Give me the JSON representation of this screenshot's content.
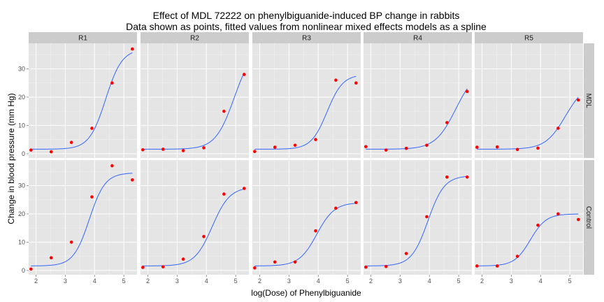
{
  "chart_data": {
    "type": "scatter",
    "title_lines": [
      "Effect of MDL 72222 on phenylbiguanide-induced BP change in rabbits",
      "Data shown as points, fitted values from nonlinear mixed effects models as a spline"
    ],
    "xlabel": "log(Dose) of Phenylbiguanide",
    "ylabel": "Change in blood pressure (mm Hg)",
    "xlim": [
      1.75,
      5.45
    ],
    "ylim": [
      -1.5,
      39
    ],
    "x_ticks": [
      2,
      3,
      4,
      5
    ],
    "x_tick_labels": [
      "2",
      "3",
      "4",
      "5"
    ],
    "y_ticks": [
      0,
      10,
      20,
      30
    ],
    "y_tick_labels": [
      "0",
      "10",
      "20",
      "30"
    ],
    "grid": true,
    "columns": [
      "R1",
      "R2",
      "R3",
      "R4",
      "R5"
    ],
    "rows": [
      "MDL",
      "Control"
    ],
    "point_color": "#FF0000",
    "line_color": "#3366FF",
    "panel_background": "#E5E5E5",
    "strip_background": "#CCCCCC",
    "x": [
      1.83,
      2.52,
      3.21,
      3.91,
      4.6,
      5.29
    ],
    "panels": [
      {
        "column": "R1",
        "row": "MDL",
        "values": [
          1.3,
          0.7,
          4,
          9,
          25,
          37
        ],
        "fit": {
          "base": 1.6,
          "top": 37,
          "mid": 4.38,
          "scale": 0.28
        }
      },
      {
        "column": "R2",
        "row": "MDL",
        "values": [
          1.4,
          1.6,
          1.1,
          2.1,
          15,
          28
        ],
        "fit": {
          "base": 1.6,
          "top": 38,
          "mid": 4.95,
          "scale": 0.32
        }
      },
      {
        "column": "R3",
        "row": "MDL",
        "values": [
          0.8,
          2.3,
          3,
          5,
          26,
          25
        ],
        "fit": {
          "base": 1.6,
          "top": 28,
          "mid": 4.3,
          "scale": 0.27
        }
      },
      {
        "column": "R4",
        "row": "MDL",
        "values": [
          2.5,
          1.3,
          1.9,
          3,
          11,
          22
        ],
        "fit": {
          "base": 1.6,
          "top": 30,
          "mid": 4.9,
          "scale": 0.35
        }
      },
      {
        "column": "R5",
        "row": "MDL",
        "values": [
          2.3,
          2.4,
          1.5,
          2,
          9,
          19
        ],
        "fit": {
          "base": 1.6,
          "top": 25,
          "mid": 4.85,
          "scale": 0.34
        }
      },
      {
        "column": "R1",
        "row": "Control",
        "values": [
          0.5,
          4.5,
          10,
          26,
          37,
          32
        ],
        "fit": {
          "base": 1.6,
          "top": 34.5,
          "mid": 3.82,
          "scale": 0.27
        }
      },
      {
        "column": "R2",
        "row": "Control",
        "values": [
          1.1,
          1.3,
          4,
          12,
          27,
          29
        ],
        "fit": {
          "base": 1.6,
          "top": 29.5,
          "mid": 4.2,
          "scale": 0.3
        }
      },
      {
        "column": "R3",
        "row": "Control",
        "values": [
          0.9,
          3,
          3,
          14,
          22,
          24
        ],
        "fit": {
          "base": 1.6,
          "top": 24,
          "mid": 3.95,
          "scale": 0.3
        }
      },
      {
        "column": "R4",
        "row": "Control",
        "values": [
          1.2,
          1.4,
          6,
          19,
          33,
          33
        ],
        "fit": {
          "base": 1.6,
          "top": 33.5,
          "mid": 3.95,
          "scale": 0.28
        }
      },
      {
        "column": "R5",
        "row": "Control",
        "values": [
          1.6,
          1.6,
          5,
          16,
          20,
          18
        ],
        "fit": {
          "base": 1.6,
          "top": 20,
          "mid": 3.65,
          "scale": 0.27
        }
      }
    ]
  }
}
